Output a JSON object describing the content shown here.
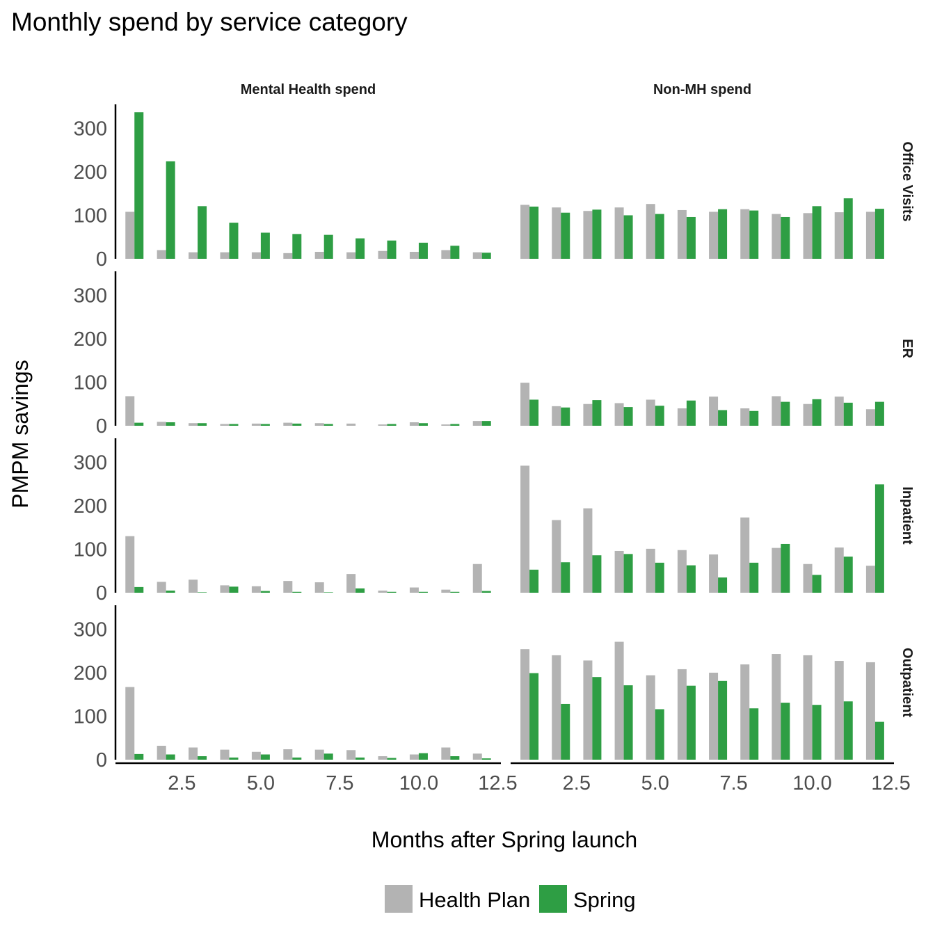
{
  "chart_data": {
    "type": "bar",
    "title": "Monthly spend by service category",
    "xlabel": "Months after Spring launch",
    "ylabel": "PMPM savings",
    "facet_columns": [
      "Mental Health spend",
      "Non-MH spend"
    ],
    "facet_rows": [
      "Office Visits",
      "ER",
      "Inpatient",
      "Outpatient"
    ],
    "x": [
      1,
      2,
      3,
      4,
      5,
      6,
      7,
      8,
      9,
      10,
      11,
      12
    ],
    "xlim": [
      0.4,
      12.6
    ],
    "x_ticks": [
      2.5,
      5.0,
      7.5,
      10.0,
      12.5
    ],
    "x_tick_labels": [
      "2.5",
      "5.0",
      "7.5",
      "10.0",
      "12.5"
    ],
    "ylim": [
      0,
      355
    ],
    "y_ticks": [
      0,
      100,
      200,
      300
    ],
    "y_tick_labels": [
      "0",
      "100",
      "200",
      "300"
    ],
    "grid": false,
    "legend_position": "bottom",
    "series_names": [
      "Health Plan",
      "Spring"
    ],
    "series_colors": [
      "#b3b3b3",
      "#2e9e44"
    ],
    "panels": [
      {
        "row": "Office Visits",
        "col": "Mental Health spend",
        "health_plan": [
          108,
          20,
          15,
          15,
          15,
          13,
          16,
          15,
          18,
          16,
          20,
          15
        ],
        "spring": [
          337,
          224,
          121,
          83,
          60,
          57,
          55,
          47,
          42,
          37,
          30,
          14
        ]
      },
      {
        "row": "Office Visits",
        "col": "Non-MH spend",
        "health_plan": [
          124,
          118,
          110,
          118,
          126,
          112,
          108,
          114,
          103,
          105,
          107,
          108
        ],
        "spring": [
          120,
          106,
          113,
          100,
          103,
          96,
          114,
          111,
          96,
          121,
          139,
          115
        ]
      },
      {
        "row": "ER",
        "col": "Mental Health spend",
        "health_plan": [
          68,
          9,
          6,
          4,
          5,
          7,
          6,
          5,
          3,
          8,
          3,
          11
        ],
        "spring": [
          7,
          8,
          6,
          4,
          4,
          5,
          4,
          0,
          4,
          6,
          4,
          11
        ]
      },
      {
        "row": "ER",
        "col": "Non-MH spend",
        "health_plan": [
          99,
          45,
          50,
          52,
          60,
          40,
          67,
          40,
          68,
          50,
          67,
          38
        ],
        "spring": [
          60,
          42,
          59,
          43,
          46,
          58,
          36,
          34,
          55,
          61,
          53,
          55
        ]
      },
      {
        "row": "Inpatient",
        "col": "Mental Health spend",
        "health_plan": [
          130,
          25,
          30,
          17,
          15,
          27,
          24,
          43,
          5,
          12,
          7,
          66
        ],
        "spring": [
          13,
          5,
          1,
          14,
          4,
          2,
          1,
          10,
          2,
          2,
          2,
          4
        ]
      },
      {
        "row": "Inpatient",
        "col": "Non-MH spend",
        "health_plan": [
          292,
          167,
          194,
          96,
          101,
          98,
          88,
          173,
          103,
          66,
          104,
          62
        ],
        "spring": [
          53,
          70,
          86,
          89,
          69,
          63,
          35,
          69,
          112,
          41,
          83,
          249
        ]
      },
      {
        "row": "Outpatient",
        "col": "Mental Health spend",
        "health_plan": [
          167,
          32,
          28,
          23,
          18,
          24,
          23,
          22,
          8,
          12,
          28,
          14
        ],
        "spring": [
          13,
          12,
          8,
          5,
          12,
          5,
          14,
          5,
          4,
          15,
          8,
          3
        ]
      },
      {
        "row": "Outpatient",
        "col": "Non-MH spend",
        "health_plan": [
          254,
          240,
          228,
          271,
          194,
          208,
          200,
          219,
          243,
          240,
          227,
          224
        ],
        "spring": [
          199,
          128,
          190,
          171,
          116,
          170,
          181,
          118,
          131,
          126,
          134,
          87
        ]
      }
    ]
  }
}
